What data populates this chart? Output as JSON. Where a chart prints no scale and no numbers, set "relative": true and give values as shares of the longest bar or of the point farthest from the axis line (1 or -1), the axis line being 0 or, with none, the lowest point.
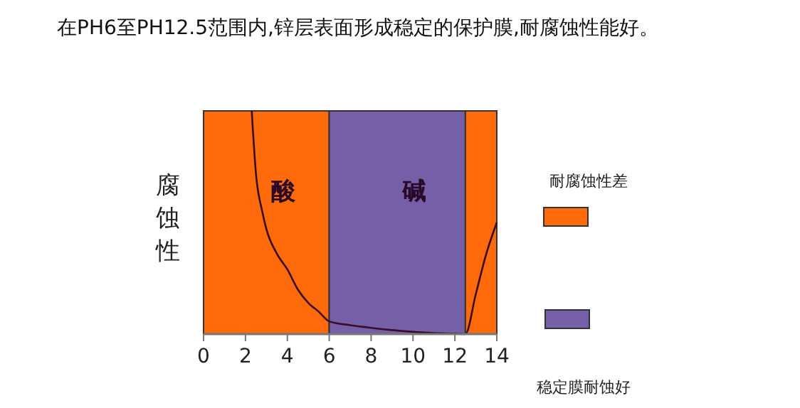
{
  "chart_data": {
    "type": "line",
    "title": "在PH6至PH12.5范围内,锌层表面形成稳定的保护膜,耐腐蚀性能好。",
    "ylabel": "腐蚀性",
    "relative": true,
    "x": [
      2.3,
      2.5,
      2.8,
      3,
      3.5,
      4,
      4.5,
      5,
      5.5,
      6,
      7,
      8,
      9,
      10,
      11,
      12,
      12.5,
      13,
      13.5,
      14
    ],
    "series": [
      {
        "color": "#3a0c2a",
        "values": [
          1,
          0.72,
          0.55,
          0.47,
          0.36,
          0.29,
          0.2,
          0.14,
          0.1,
          0.057,
          0.04,
          0.028,
          0.018,
          0.01,
          0.005,
          0.002,
          0,
          0.18,
          0.36,
          0.5
        ]
      }
    ],
    "xlim": [
      0,
      14
    ],
    "xticks": [
      0,
      2,
      4,
      6,
      8,
      10,
      12,
      14
    ],
    "bands": [
      {
        "axis": "x",
        "from": 0,
        "to": 6,
        "label": "酸",
        "color": "#ff6a0a"
      },
      {
        "axis": "x",
        "from": 6,
        "to": 12.5,
        "label": "碱",
        "color": "#7560a8"
      },
      {
        "axis": "x",
        "from": 12.5,
        "to": 14,
        "color": "#ff6a0a"
      }
    ],
    "annotations": [
      "耐腐蚀性差",
      "稳定膜耐蚀好"
    ]
  }
}
